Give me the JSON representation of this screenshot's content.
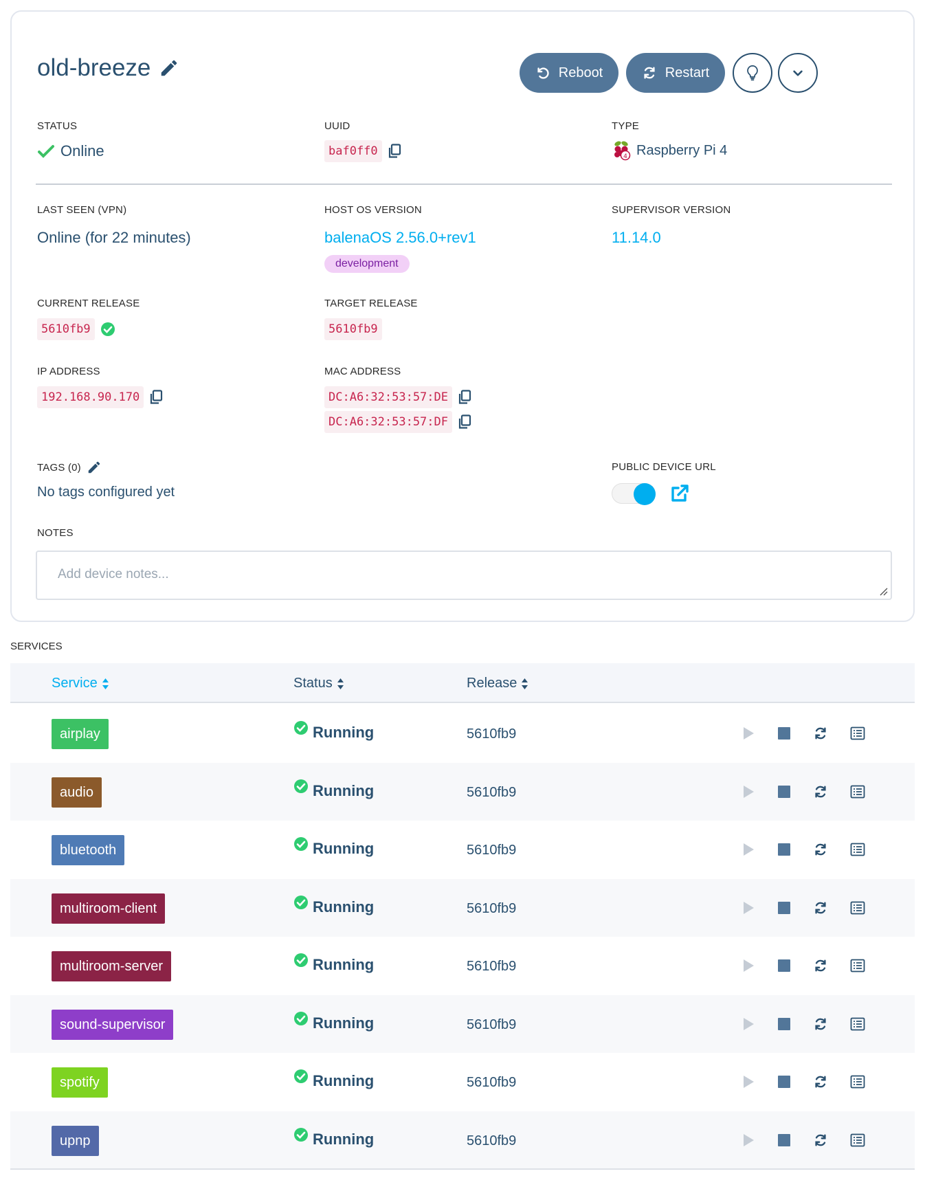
{
  "device": {
    "name": "old-breeze",
    "actions": {
      "reboot": "Reboot",
      "restart": "Restart"
    }
  },
  "info": {
    "status": {
      "label": "STATUS",
      "value": "Online"
    },
    "uuid": {
      "label": "UUID",
      "value": "baf0ff0"
    },
    "type": {
      "label": "TYPE",
      "value": "Raspberry Pi 4"
    },
    "last_seen": {
      "label": "LAST SEEN (VPN)",
      "value": "Online (for 22 minutes)"
    },
    "host_os": {
      "label": "HOST OS VERSION",
      "value": "balenaOS 2.56.0+rev1",
      "badge": "development"
    },
    "supervisor": {
      "label": "SUPERVISOR VERSION",
      "value": "11.14.0"
    },
    "current_release": {
      "label": "CURRENT RELEASE",
      "value": "5610fb9"
    },
    "target_release": {
      "label": "TARGET RELEASE",
      "value": "5610fb9"
    },
    "ip": {
      "label": "IP ADDRESS",
      "value": "192.168.90.170"
    },
    "mac": {
      "label": "MAC ADDRESS",
      "values": [
        "DC:A6:32:53:57:DE",
        "DC:A6:32:53:57:DF"
      ]
    },
    "tags": {
      "label": "TAGS (0)",
      "value": "No tags configured yet"
    },
    "public_url": {
      "label": "PUBLIC DEVICE URL",
      "enabled": true
    },
    "notes": {
      "label": "NOTES",
      "placeholder": "Add device notes..."
    }
  },
  "services": {
    "label": "SERVICES",
    "columns": [
      "Service",
      "Status",
      "Release"
    ],
    "rows": [
      {
        "name": "airplay",
        "color": "#3cc164",
        "status": "Running",
        "release": "5610fb9"
      },
      {
        "name": "audio",
        "color": "#8b5a2b",
        "status": "Running",
        "release": "5610fb9"
      },
      {
        "name": "bluetooth",
        "color": "#4f7bb5",
        "status": "Running",
        "release": "5610fb9"
      },
      {
        "name": "multiroom-client",
        "color": "#8b2346",
        "status": "Running",
        "release": "5610fb9"
      },
      {
        "name": "multiroom-server",
        "color": "#8b2346",
        "status": "Running",
        "release": "5610fb9"
      },
      {
        "name": "sound-supervisor",
        "color": "#8e3ec9",
        "status": "Running",
        "release": "5610fb9"
      },
      {
        "name": "spotify",
        "color": "#7ed321",
        "status": "Running",
        "release": "5610fb9"
      },
      {
        "name": "upnp",
        "color": "#5369a8",
        "status": "Running",
        "release": "5610fb9"
      }
    ]
  },
  "colors": {
    "primary": "#527699",
    "text": "#2a506f",
    "link": "#00aeef",
    "success": "#2ecc71",
    "code": "#c7254e"
  }
}
